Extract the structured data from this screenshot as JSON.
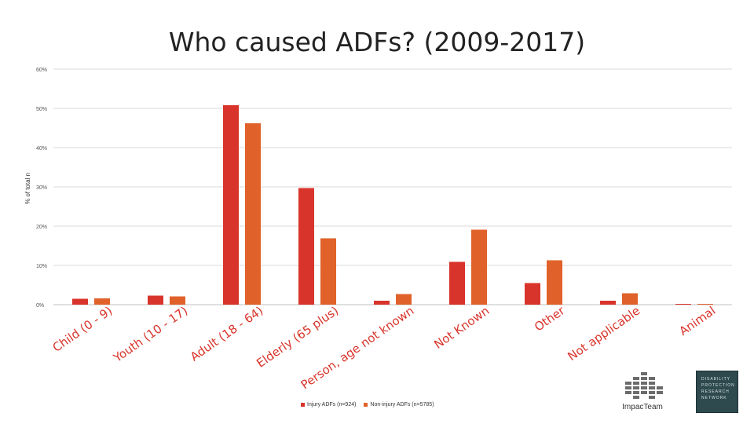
{
  "slide": {
    "title": "Who caused ADFs? (2009-2017)"
  },
  "chart_data": {
    "type": "bar",
    "title": "",
    "ylabel": "% of total n",
    "xlabel": "",
    "ylim": [
      0,
      60
    ],
    "yticks": [
      "0%",
      "10%",
      "20%",
      "30%",
      "40%",
      "50%",
      "60%"
    ],
    "grid": true,
    "legend_position": "bottom",
    "categories": [
      "Child (0 - 9)",
      "Youth (10 - 17)",
      "Adult (18 - 64)",
      "Elderly (65 plus)",
      "Person, age not known",
      "Not Known",
      "Other",
      "Not applicable",
      "Animal"
    ],
    "series": [
      {
        "name": "Injury ADFs (n=924)",
        "color": "#d9342b",
        "values": [
          1.5,
          2.3,
          50.8,
          29.7,
          1.0,
          10.9,
          5.5,
          1.0,
          0.2
        ]
      },
      {
        "name": "Non-injury ADFs (n=5785)",
        "color": "#e0622a",
        "values": [
          1.6,
          2.1,
          46.2,
          16.9,
          2.7,
          19.1,
          11.3,
          2.9,
          0.2
        ]
      }
    ]
  },
  "logos": {
    "impac_name": "ImpacTeam",
    "dprn_lines": [
      "DISABILITY",
      "PROTECTION",
      "RESEARCH",
      "NETWORK"
    ]
  }
}
